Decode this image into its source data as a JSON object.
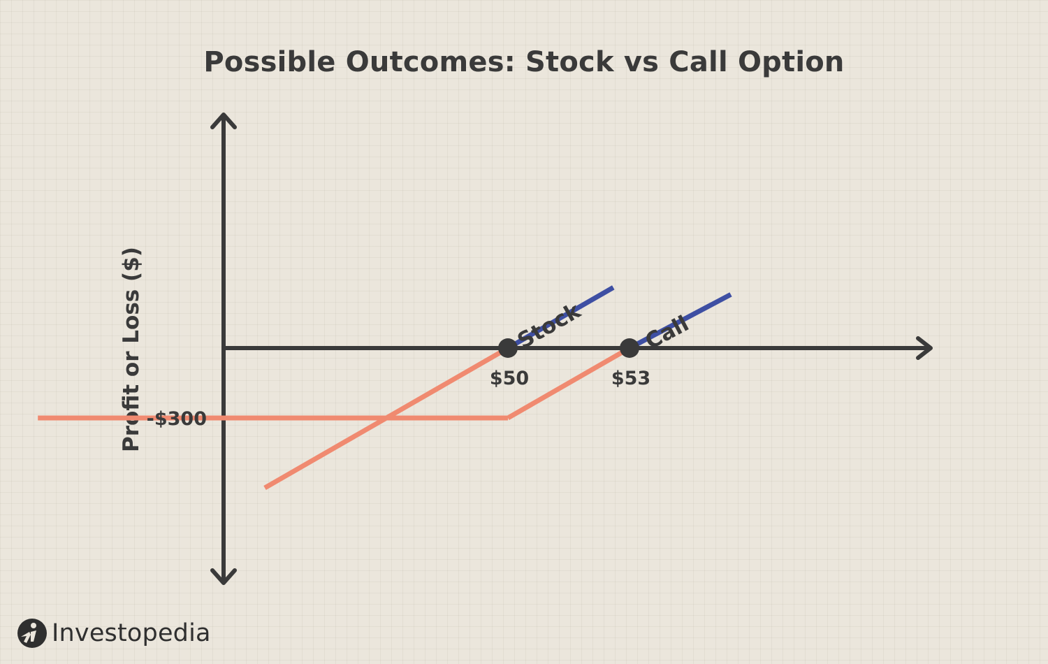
{
  "chart_data": {
    "type": "line",
    "title": "Possible Outcomes: Stock vs Call Option",
    "ylabel": "Profit or Loss ($)",
    "xlabel": "",
    "colors": {
      "profit": "#3e4fa3",
      "loss": "#f08a70",
      "axis": "#3a3a3a"
    },
    "y_ticks": [
      {
        "value": -300,
        "label": "-$300"
      }
    ],
    "x_markers": [
      {
        "value": 50,
        "label": "$50"
      },
      {
        "value": 53,
        "label": "$53"
      }
    ],
    "series": [
      {
        "name": "Stock",
        "points": [
          [
            44,
            -600
          ],
          [
            50,
            0
          ],
          [
            52.6,
            260
          ]
        ]
      },
      {
        "name": "Call",
        "points": [
          [
            38.4,
            -300
          ],
          [
            50,
            -300
          ],
          [
            53,
            0
          ],
          [
            55.5,
            230
          ]
        ]
      }
    ]
  },
  "brand": {
    "name": "Investopedia",
    "logo": "investopedia-logo-icon"
  }
}
